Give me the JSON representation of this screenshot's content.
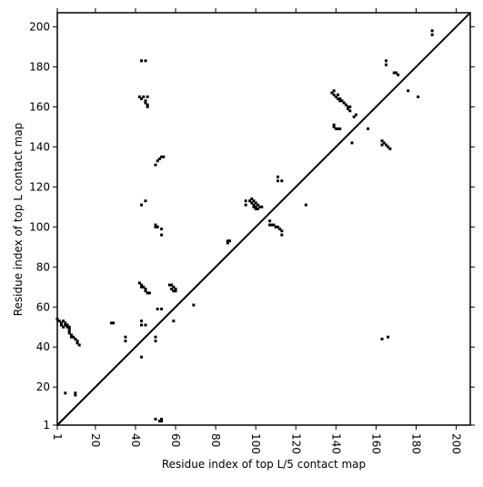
{
  "chart_data": {
    "type": "scatter",
    "xlabel": "Residue index of top L/5 contact map",
    "ylabel": "Residue index of top L contact map",
    "color": "#000000",
    "diagonal": true,
    "xlim": [
      1,
      207
    ],
    "ylim": [
      1,
      207
    ],
    "xticks": [
      1,
      20,
      40,
      60,
      80,
      100,
      120,
      140,
      160,
      180,
      200
    ],
    "yticks": [
      1,
      20,
      40,
      60,
      80,
      100,
      120,
      140,
      160,
      180,
      200
    ],
    "x": [
      1,
      2,
      3,
      3,
      4,
      5,
      5,
      6,
      7,
      7,
      7,
      7,
      8,
      8,
      9,
      10,
      11,
      11,
      12,
      4,
      6,
      28,
      29,
      35,
      35,
      43,
      43,
      45,
      50,
      50,
      43,
      5,
      10,
      10,
      50,
      52,
      53,
      53,
      51,
      53,
      59,
      69,
      42,
      43,
      43,
      44,
      45,
      45,
      46,
      47,
      57,
      58,
      59,
      58,
      59,
      60,
      60,
      50,
      50,
      51,
      53,
      53,
      43,
      45,
      50,
      51,
      52,
      53,
      54,
      43,
      44,
      45,
      45,
      46,
      46,
      42,
      46,
      43,
      45,
      86,
      86,
      87,
      95,
      95,
      97,
      98,
      98,
      99,
      99,
      99,
      100,
      100,
      100,
      101,
      101,
      102,
      103,
      107,
      107,
      108,
      109,
      110,
      111,
      112,
      113,
      113,
      111,
      111,
      113,
      125,
      138,
      139,
      139,
      140,
      141,
      141,
      142,
      142,
      143,
      144,
      145,
      146,
      146,
      147,
      147,
      149,
      150,
      148,
      139,
      139,
      140,
      141,
      142,
      156,
      163,
      163,
      164,
      165,
      166,
      167,
      165,
      165,
      169,
      170,
      171,
      163,
      166,
      176,
      181,
      188,
      188
    ],
    "y": [
      54,
      53,
      52,
      51,
      53,
      52,
      51,
      51,
      50,
      49,
      48,
      47,
      46,
      45,
      45,
      44,
      43,
      42,
      41,
      50,
      50,
      52,
      52,
      45,
      43,
      53,
      51,
      51,
      45,
      43,
      35,
      17,
      17,
      16,
      4,
      3,
      3,
      4,
      59,
      59,
      53,
      61,
      72,
      71,
      70,
      70,
      69,
      68,
      67,
      67,
      71,
      71,
      70,
      69,
      68,
      69,
      68,
      101,
      100,
      100,
      99,
      96,
      111,
      113,
      131,
      133,
      134,
      135,
      135,
      164,
      165,
      163,
      162,
      161,
      160,
      165,
      165,
      183,
      183,
      93,
      92,
      93,
      113,
      111,
      113,
      112,
      114,
      113,
      111,
      110,
      112,
      110,
      109,
      111,
      109,
      110,
      110,
      103,
      101,
      101,
      101,
      100,
      100,
      99,
      98,
      96,
      125,
      123,
      123,
      111,
      167,
      168,
      166,
      165,
      166,
      164,
      164,
      163,
      163,
      162,
      161,
      159,
      160,
      160,
      158,
      155,
      156,
      142,
      151,
      150,
      149,
      149,
      149,
      149,
      143,
      141,
      142,
      141,
      140,
      139,
      183,
      181,
      177,
      177,
      176,
      44,
      45,
      168,
      165,
      198,
      196
    ]
  }
}
